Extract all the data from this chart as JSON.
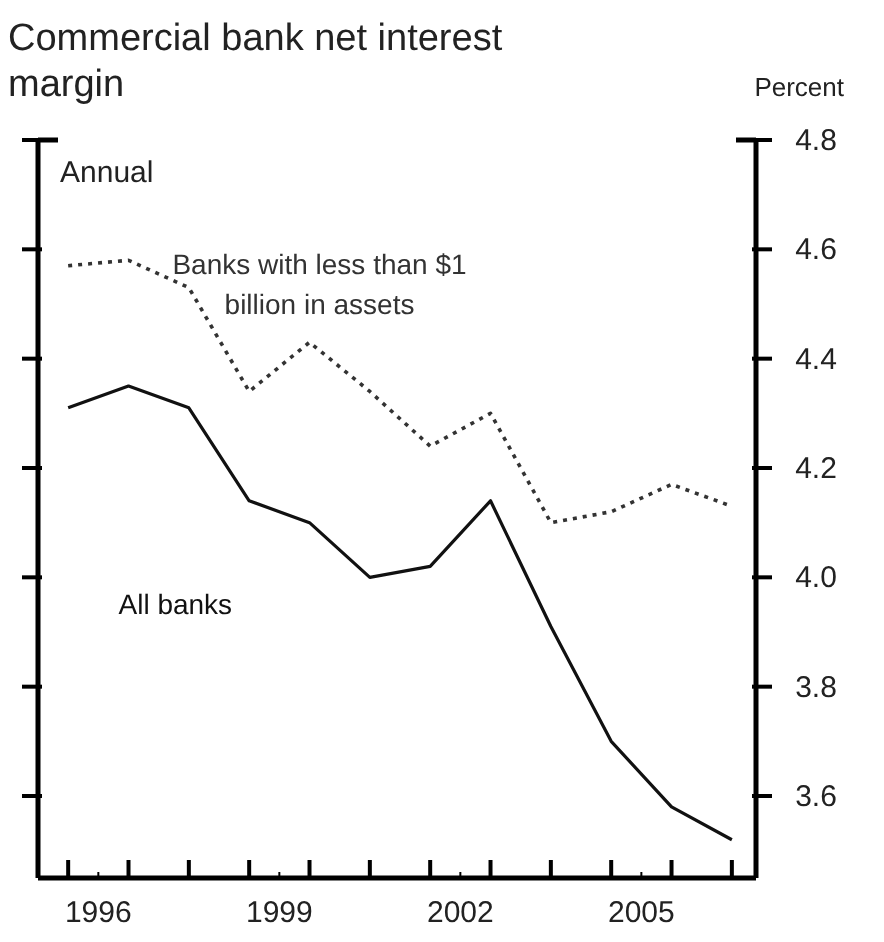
{
  "chart_data": {
    "type": "line",
    "title": "Commercial bank net interest margin",
    "ylabel": "Percent",
    "annotations": [
      "Annual"
    ],
    "x": [
      1995.5,
      1996.5,
      1997.5,
      1998.5,
      1999.5,
      2000.5,
      2001.5,
      2002.5,
      2003.5,
      2004.5,
      2005.5,
      2006.5
    ],
    "series": [
      {
        "name": "All banks",
        "color": "#111111",
        "line_style": "solid",
        "values": [
          4.31,
          4.35,
          4.31,
          4.14,
          4.1,
          4.0,
          4.02,
          4.14,
          3.91,
          3.7,
          3.58,
          3.52
        ]
      },
      {
        "name": "Banks with less than $1 billion in assets",
        "color": "#333333",
        "line_style": "dotted",
        "values": [
          4.57,
          4.58,
          4.53,
          4.34,
          4.43,
          4.34,
          4.24,
          4.3,
          4.1,
          4.12,
          4.17,
          4.13
        ]
      }
    ],
    "xlim": [
      1995,
      2006.9
    ],
    "xticks": [
      {
        "value": 1995.5,
        "label": null
      },
      {
        "value": 1996,
        "label": "1996"
      },
      {
        "value": 1996.5,
        "label": null
      },
      {
        "value": 1997.5,
        "label": null
      },
      {
        "value": 1998.5,
        "label": null
      },
      {
        "value": 1999,
        "label": "1999"
      },
      {
        "value": 1999.5,
        "label": null
      },
      {
        "value": 2000.5,
        "label": null
      },
      {
        "value": 2001.5,
        "label": null
      },
      {
        "value": 2002,
        "label": "2002"
      },
      {
        "value": 2002.5,
        "label": null
      },
      {
        "value": 2003.5,
        "label": null
      },
      {
        "value": 2004.5,
        "label": null
      },
      {
        "value": 2005,
        "label": "2005"
      },
      {
        "value": 2005.5,
        "label": null
      },
      {
        "value": 2006.5,
        "label": null
      }
    ],
    "ylim": [
      3.45,
      4.8
    ],
    "yticks": [
      3.6,
      3.8,
      {
        "value": 4,
        "label": "4.0"
      },
      4.2,
      4.4,
      4.6,
      4.8
    ],
    "grid": false,
    "legend": false,
    "marker": "none"
  }
}
